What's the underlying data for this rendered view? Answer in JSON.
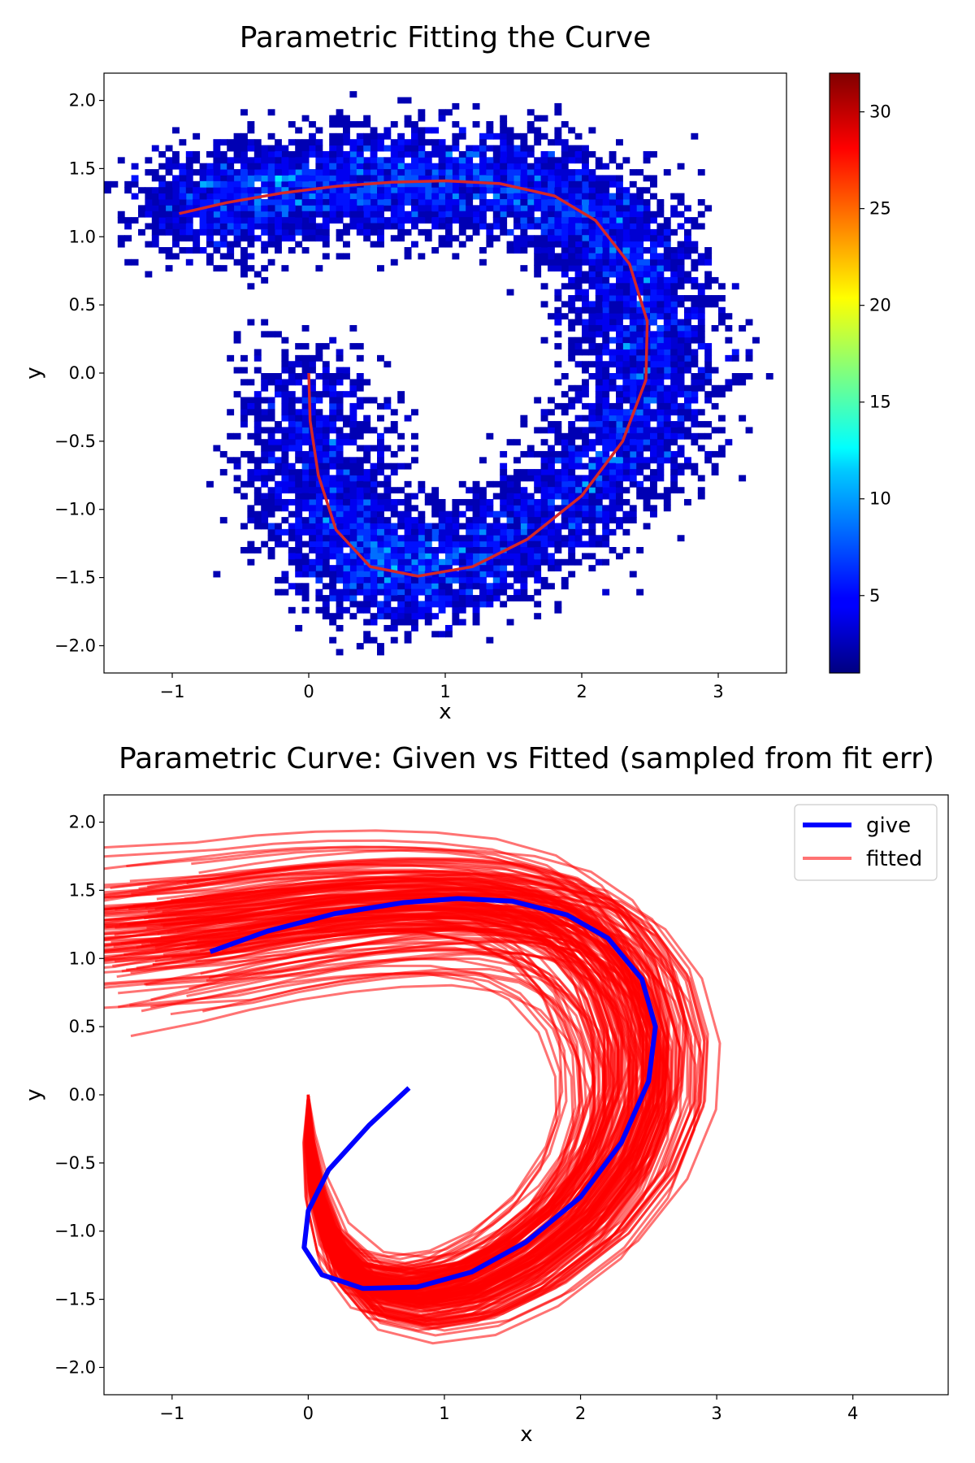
{
  "figure_title": "Parametric Fitting the Curve",
  "chart_data": [
    {
      "type": "heatmap",
      "title": "Parametric Fitting the Curve",
      "xlabel": "x",
      "ylabel": "y",
      "xlim": [
        -1.5,
        3.5
      ],
      "ylim": [
        -2.2,
        2.2
      ],
      "xticks": [
        -1,
        0,
        1,
        2,
        3
      ],
      "yticks": [
        -2.0,
        -1.5,
        -1.0,
        -0.5,
        0.0,
        0.5,
        1.0,
        1.5,
        2.0
      ],
      "xtick_labels": [
        "−1",
        "0",
        "1",
        "2",
        "3"
      ],
      "ytick_labels": [
        "−2.0",
        "−1.5",
        "−1.0",
        "−0.5",
        "0.0",
        "0.5",
        "1.0",
        "1.5",
        "2.0"
      ],
      "colormap": "jet",
      "colorbar_range": [
        1,
        32
      ],
      "colorbar_ticks": [
        5,
        10,
        15,
        20,
        25,
        30
      ],
      "colorbar_tick_labels": [
        "5",
        "10",
        "15",
        "20",
        "25",
        "30"
      ],
      "empty_color": "#ffffff",
      "density_path": {
        "x": [
          -0.95,
          -0.5,
          0.0,
          0.5,
          1.0,
          1.5,
          2.0,
          2.3,
          2.5,
          2.5,
          2.3,
          1.9,
          1.4,
          0.9,
          0.5,
          0.2,
          0.05,
          0.0
        ],
        "y": [
          1.18,
          1.28,
          1.36,
          1.4,
          1.42,
          1.4,
          1.2,
          0.9,
          0.4,
          -0.1,
          -0.55,
          -0.95,
          -1.3,
          -1.48,
          -1.45,
          -1.2,
          -0.7,
          0.0
        ]
      },
      "fit_curve": {
        "color": "#d62728",
        "x": [
          -0.95,
          -0.6,
          -0.2,
          0.2,
          0.6,
          1.0,
          1.4,
          1.8,
          2.1,
          2.35,
          2.48,
          2.47,
          2.3,
          2.0,
          1.6,
          1.2,
          0.8,
          0.45,
          0.2,
          0.07,
          0.01,
          0.0
        ],
        "y": [
          1.17,
          1.25,
          1.32,
          1.37,
          1.4,
          1.41,
          1.39,
          1.3,
          1.12,
          0.8,
          0.38,
          -0.05,
          -0.5,
          -0.9,
          -1.22,
          -1.42,
          -1.49,
          -1.42,
          -1.15,
          -0.75,
          -0.35,
          0.0
        ]
      }
    },
    {
      "type": "line",
      "title": "Parametric Curve: Given vs Fitted (sampled from fit err)",
      "xlabel": "x",
      "ylabel": "y",
      "xlim": [
        -1.5,
        4.7
      ],
      "ylim": [
        -2.2,
        2.2
      ],
      "xticks": [
        -1,
        0,
        1,
        2,
        3,
        4
      ],
      "yticks": [
        -2.0,
        -1.5,
        -1.0,
        -0.5,
        0.0,
        0.5,
        1.0,
        1.5,
        2.0
      ],
      "xtick_labels": [
        "−1",
        "0",
        "1",
        "2",
        "3",
        "4"
      ],
      "ytick_labels": [
        "−2.0",
        "−1.5",
        "−1.0",
        "−0.5",
        "0.0",
        "0.5",
        "1.0",
        "1.5",
        "2.0"
      ],
      "legend": {
        "position": "upper right",
        "entries": [
          "give",
          "fitted"
        ]
      },
      "series": [
        {
          "name": "give",
          "color": "#0000ff",
          "x": [
            -0.72,
            -0.3,
            0.2,
            0.7,
            1.1,
            1.5,
            1.9,
            2.2,
            2.45,
            2.55,
            2.5,
            2.3,
            2.0,
            1.6,
            1.2,
            0.8,
            0.4,
            0.1,
            -0.03,
            0.0,
            0.15,
            0.45,
            0.74
          ],
          "y": [
            1.05,
            1.2,
            1.33,
            1.41,
            1.44,
            1.42,
            1.32,
            1.15,
            0.85,
            0.5,
            0.1,
            -0.35,
            -0.75,
            -1.08,
            -1.3,
            -1.41,
            -1.42,
            -1.32,
            -1.12,
            -0.85,
            -0.55,
            -0.22,
            0.05
          ]
        },
        {
          "name": "fitted",
          "color": "#ff0000",
          "opacity": 0.55,
          "x": [
            -0.95,
            -0.6,
            -0.2,
            0.2,
            0.6,
            1.0,
            1.4,
            1.8,
            2.1,
            2.35,
            2.48,
            2.47,
            2.3,
            2.0,
            1.6,
            1.2,
            0.8,
            0.45,
            0.2,
            0.07,
            0.01,
            0.0
          ],
          "y": [
            1.17,
            1.25,
            1.32,
            1.37,
            1.4,
            1.41,
            1.39,
            1.3,
            1.12,
            0.8,
            0.38,
            -0.05,
            -0.5,
            -0.9,
            -1.22,
            -1.42,
            -1.49,
            -1.42,
            -1.15,
            -0.75,
            -0.35,
            0.0
          ]
        }
      ]
    }
  ]
}
